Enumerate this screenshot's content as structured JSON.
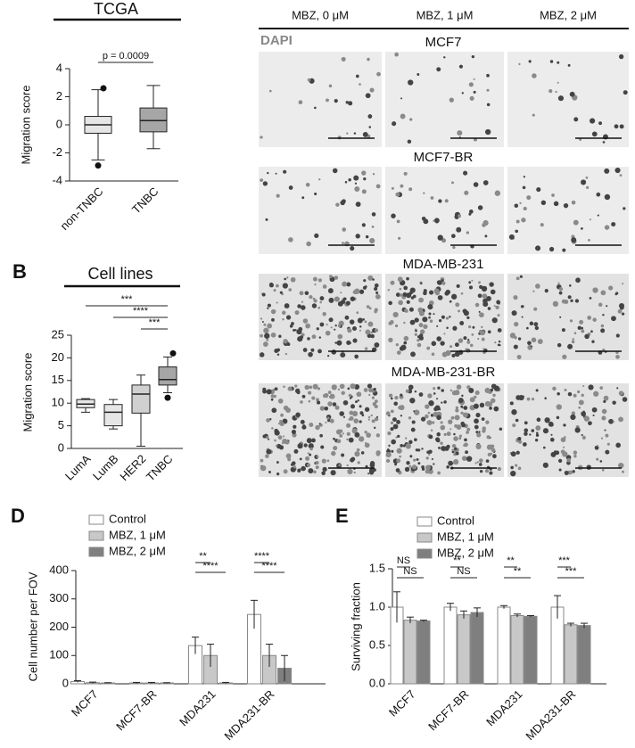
{
  "chart_data": [
    {
      "type": "box",
      "title": "TCGA",
      "y_label": "Migration score",
      "categories": [
        "non-TNBC",
        "TNBC"
      ],
      "boxes": [
        {
          "min": -2.5,
          "q1": -0.6,
          "median": 0,
          "q3": 0.6,
          "max": 2.5,
          "outliers": [
            2.6,
            -2.9
          ],
          "color": "#e6e6e6"
        },
        {
          "min": -1.7,
          "q1": -0.5,
          "median": 0.3,
          "q3": 1.2,
          "max": 2.8,
          "outliers": [],
          "color": "#a6a6a6"
        }
      ],
      "ylim": [
        -4,
        4
      ],
      "yticks": [
        -4,
        -2,
        0,
        2,
        4
      ],
      "annotations": [
        "p = 0.0009"
      ]
    },
    {
      "type": "box",
      "panel_label": "B",
      "title": "Cell lines",
      "y_label": "Migration score",
      "categories": [
        "LumA",
        "LumB",
        "HER2",
        "TNBC"
      ],
      "boxes": [
        {
          "min": 8,
          "q1": 9,
          "median": 9.8,
          "q3": 10.8,
          "max": 11,
          "outliers": [],
          "color": "#e6e6e6"
        },
        {
          "min": 4.3,
          "q1": 5,
          "median": 8,
          "q3": 9.7,
          "max": 10.8,
          "outliers": [],
          "color": "#e6e6e6"
        },
        {
          "min": 0.5,
          "q1": 7.8,
          "median": 12,
          "q3": 14,
          "max": 16.2,
          "outliers": [],
          "color": "#d0d0d0"
        },
        {
          "min": 12.3,
          "q1": 14,
          "median": 15.2,
          "q3": 18,
          "max": 20.2,
          "outliers": [
            21,
            11.2
          ],
          "color": "#a6a6a6"
        }
      ],
      "ylim": [
        0,
        25
      ],
      "yticks": [
        0,
        5,
        10,
        15,
        20,
        25
      ],
      "annotations": [
        "***",
        "****",
        "***"
      ]
    },
    {
      "type": "bar",
      "panel_label": "D",
      "y_label": "Cell number per FOV",
      "categories": [
        "MCF7",
        "MCF7-BR",
        "MDA231",
        "MDA231-BR"
      ],
      "series": [
        {
          "name": "Control",
          "color": "#ffffff",
          "values": [
            8,
            3,
            135,
            245
          ],
          "errors": [
            3,
            2,
            30,
            50
          ]
        },
        {
          "name": "MBZ, 1 μM",
          "color": "#c8c8c8",
          "values": [
            4,
            3,
            100,
            100
          ],
          "errors": [
            2,
            2,
            40,
            40
          ]
        },
        {
          "name": "MBZ, 2 μM",
          "color": "#7f7f7f",
          "values": [
            3,
            3,
            3,
            55
          ],
          "errors": [
            1,
            1,
            2,
            45
          ]
        }
      ],
      "ylim": [
        0,
        400
      ],
      "yticks": [
        0,
        100,
        200,
        300,
        400
      ],
      "annotations": [
        "**",
        "****",
        "****",
        "****"
      ]
    },
    {
      "type": "bar",
      "panel_label": "E",
      "y_label": "Surviving fraction",
      "categories": [
        "MCF7",
        "MCF7-BR",
        "MDA231",
        "MDA231-BR"
      ],
      "series": [
        {
          "name": "Control",
          "color": "#ffffff",
          "values": [
            1.0,
            1.0,
            1.0,
            1.0
          ],
          "errors": [
            0.2,
            0.05,
            0.02,
            0.15
          ]
        },
        {
          "name": "MBZ, 1 μM",
          "color": "#c8c8c8",
          "values": [
            0.83,
            0.9,
            0.89,
            0.77
          ],
          "errors": [
            0.04,
            0.05,
            0.02,
            0.02
          ]
        },
        {
          "name": "MBZ, 2 μM",
          "color": "#7f7f7f",
          "values": [
            0.82,
            0.93,
            0.88,
            0.76
          ],
          "errors": [
            0.01,
            0.06,
            0.01,
            0.03
          ]
        }
      ],
      "ylim": [
        0,
        1.5
      ],
      "yticks": [
        {
          "value": 0,
          "label": "0.0"
        },
        0.5,
        {
          "value": 1,
          "label": "1.0"
        },
        1.5
      ],
      "annotations": [
        "NS",
        "NS",
        "**",
        "NS",
        "**",
        "**",
        "***",
        "***"
      ]
    }
  ],
  "image_panel": {
    "columns": [
      "MBZ, 0 μM",
      "MBZ, 1 μM",
      "MBZ, 2 μM"
    ],
    "stain": "DAPI",
    "rows": [
      "MCF7",
      "MCF7-BR",
      "MDA-MB-231",
      "MDA-MB-231-BR"
    ]
  }
}
